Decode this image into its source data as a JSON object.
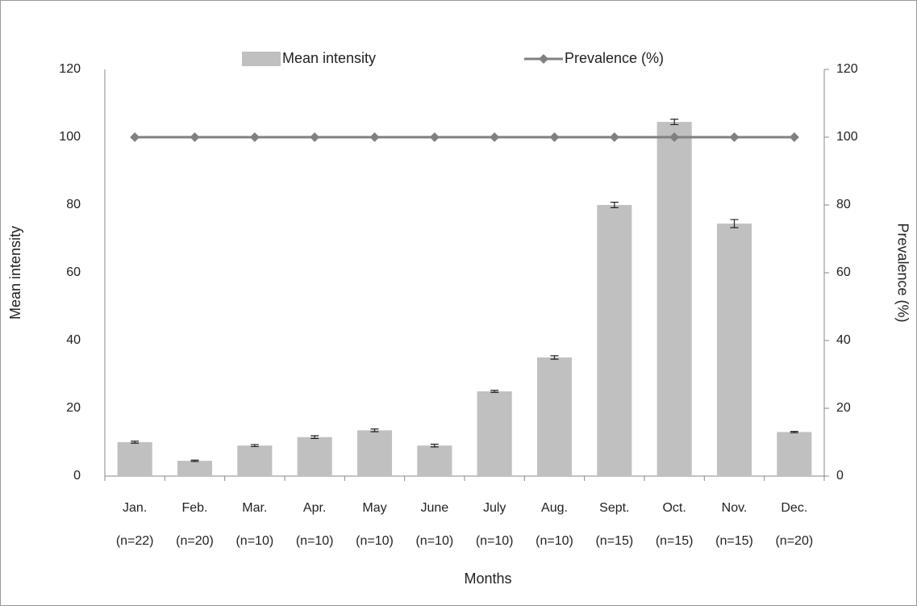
{
  "chart_data": {
    "type": "bar",
    "x_label": "Months",
    "y_label": "Mean intensity",
    "y2_label": "Prevalence (%)",
    "categories": [
      "Jan.",
      "Feb.",
      "Mar.",
      "Apr.",
      "May",
      "June",
      "July",
      "Aug.",
      "Sept.",
      "Oct.",
      "Nov.",
      "Dec."
    ],
    "category_notes": [
      "(n=22)",
      "(n=20)",
      "(n=10)",
      "(n=10)",
      "(n=10)",
      "(n=10)",
      "(n=10)",
      "(n=10)",
      "(n=15)",
      "(n=15)",
      "(n=15)",
      "(n=20)"
    ],
    "series": [
      {
        "name": "Mean intensity",
        "type": "bar",
        "color": "#c0c0c0",
        "values": [
          10,
          4.5,
          9,
          11.5,
          13.5,
          9,
          25,
          35,
          80,
          104.5,
          74.5,
          13
        ],
        "errors": [
          0.3,
          0.2,
          0.3,
          0.4,
          0.4,
          0.4,
          0.3,
          0.5,
          0.8,
          0.8,
          1.2,
          0.2
        ]
      },
      {
        "name": "Prevalence (%)",
        "type": "line",
        "axis": "y2",
        "color": "#808080",
        "values": [
          100,
          100,
          100,
          100,
          100,
          100,
          100,
          100,
          100,
          100,
          100,
          100
        ]
      }
    ],
    "ylim": [
      0,
      120
    ],
    "yticks": [
      0,
      20,
      40,
      60,
      80,
      100,
      120
    ],
    "y2lim": [
      0,
      120
    ],
    "y2ticks": [
      0,
      20,
      40,
      60,
      80,
      100,
      120
    ],
    "grid": false,
    "legend": "top"
  }
}
